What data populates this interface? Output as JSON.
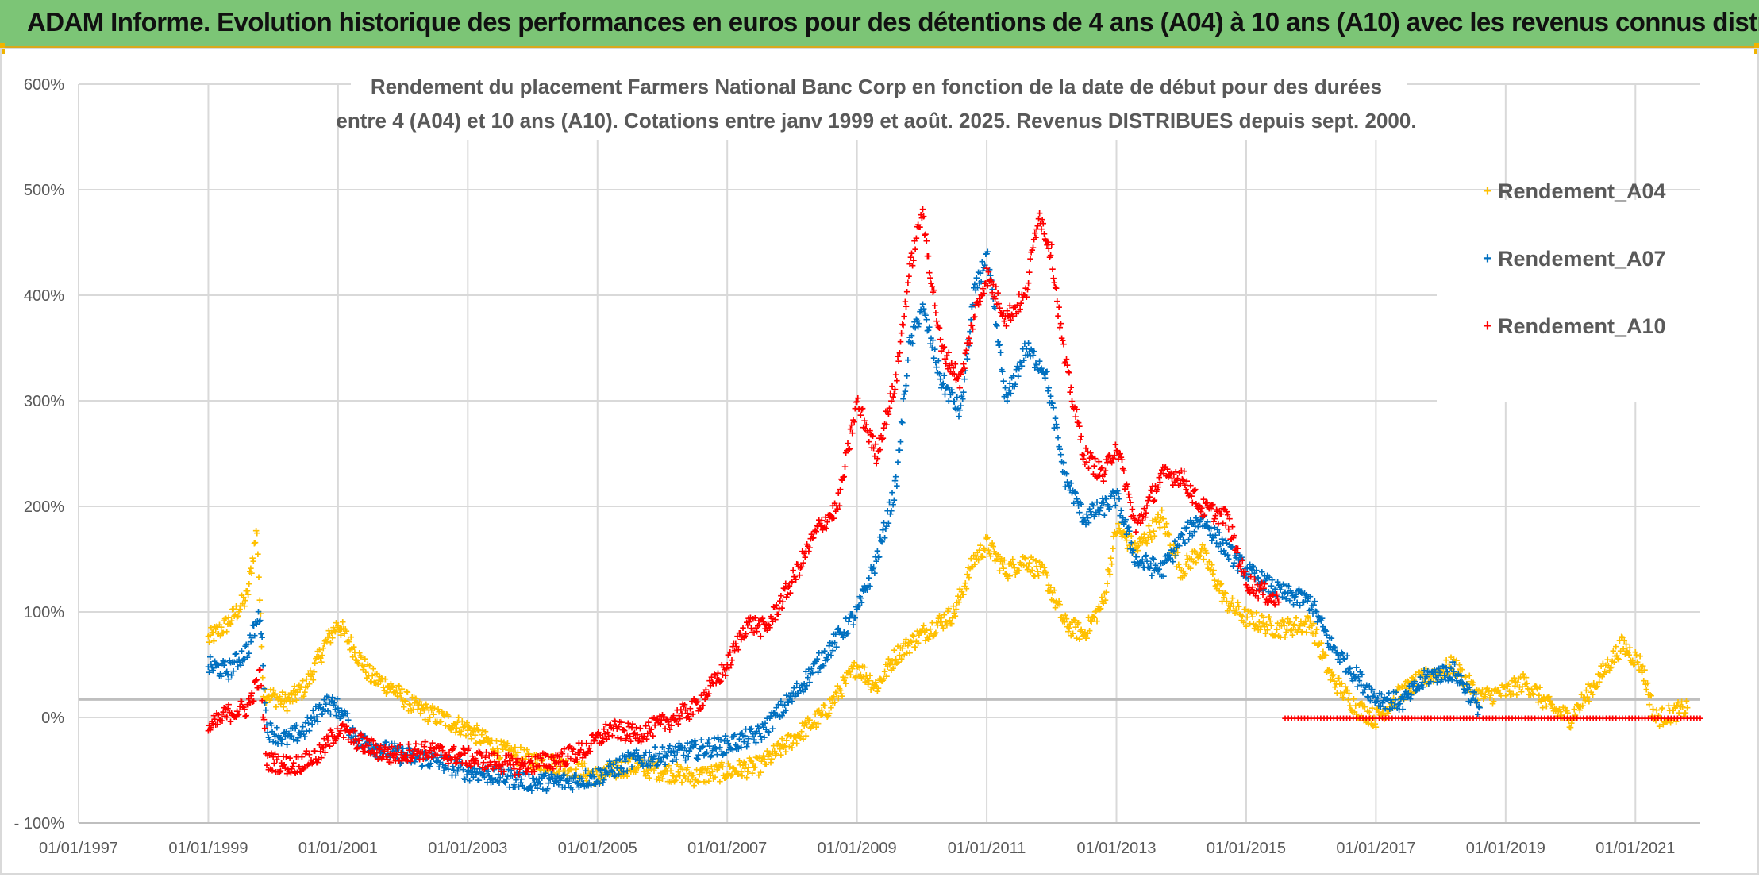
{
  "header": {
    "title": "ADAM Informe. Evolution historique des performances en euros pour des détentions de 4 ans (A04) à 10 ans (A10) avec les revenus connus distribués"
  },
  "colors": {
    "header_bg": "#7cc576",
    "a04": "#ffc000",
    "a07": "#0070c0",
    "a10": "#ff0000"
  },
  "chart_data": {
    "type": "scatter",
    "title_lines": [
      "Rendement du placement Farmers National Banc Corp en fonction de la date de début pour des durées",
      "entre 4 (A04) et 10 ans (A10). Cotations entre janv 1999 et août. 2025. Revenus DISTRIBUES depuis sept. 2000."
    ],
    "x_ticks": [
      "01/01/1997",
      "01/01/1999",
      "01/01/2001",
      "01/01/2003",
      "01/01/2005",
      "01/01/2007",
      "01/01/2009",
      "01/01/2011",
      "01/01/2013",
      "01/01/2015",
      "01/01/2017",
      "01/01/2019",
      "01/01/2021"
    ],
    "y_ticks": [
      "- 100%",
      "0%",
      "100%",
      "200%",
      "300%",
      "400%",
      "500%",
      "600%"
    ],
    "xlim": [
      "1997-01-01",
      "2022-01-01"
    ],
    "ylim": [
      -100,
      600
    ],
    "reference_line": 17,
    "legend_position": "right",
    "series": [
      {
        "name": "Rendement_A04",
        "color": "#ffc000",
        "points": [
          [
            1999.0,
            75
          ],
          [
            1999.3,
            90
          ],
          [
            1999.6,
            115
          ],
          [
            1999.75,
            180
          ],
          [
            1999.85,
            25
          ],
          [
            2000.2,
            15
          ],
          [
            2000.5,
            30
          ],
          [
            2000.8,
            70
          ],
          [
            2001.0,
            90
          ],
          [
            2001.2,
            70
          ],
          [
            2001.5,
            40
          ],
          [
            2001.8,
            30
          ],
          [
            2002.2,
            10
          ],
          [
            2002.6,
            0
          ],
          [
            2003.0,
            -10
          ],
          [
            2003.5,
            -30
          ],
          [
            2004.0,
            -40
          ],
          [
            2004.5,
            -45
          ],
          [
            2005.0,
            -55
          ],
          [
            2005.5,
            -45
          ],
          [
            2006.0,
            -50
          ],
          [
            2006.5,
            -55
          ],
          [
            2007.0,
            -50
          ],
          [
            2007.5,
            -45
          ],
          [
            2008.0,
            -20
          ],
          [
            2008.5,
            5
          ],
          [
            2009.0,
            50
          ],
          [
            2009.3,
            30
          ],
          [
            2009.6,
            60
          ],
          [
            2010.0,
            80
          ],
          [
            2010.5,
            100
          ],
          [
            2010.8,
            150
          ],
          [
            2011.0,
            165
          ],
          [
            2011.3,
            140
          ],
          [
            2011.6,
            150
          ],
          [
            2011.9,
            135
          ],
          [
            2012.2,
            90
          ],
          [
            2012.5,
            80
          ],
          [
            2012.8,
            110
          ],
          [
            2013.0,
            180
          ],
          [
            2013.3,
            160
          ],
          [
            2013.7,
            190
          ],
          [
            2014.0,
            140
          ],
          [
            2014.3,
            160
          ],
          [
            2014.7,
            110
          ],
          [
            2015.0,
            95
          ],
          [
            2015.5,
            85
          ],
          [
            2016.0,
            90
          ],
          [
            2016.3,
            40
          ],
          [
            2016.7,
            10
          ],
          [
            2017.0,
            0
          ],
          [
            2017.4,
            25
          ],
          [
            2017.8,
            40
          ],
          [
            2018.2,
            50
          ],
          [
            2018.6,
            20
          ],
          [
            2019.0,
            25
          ],
          [
            2019.3,
            35
          ],
          [
            2019.7,
            10
          ],
          [
            2020.0,
            0
          ],
          [
            2020.4,
            35
          ],
          [
            2020.8,
            70
          ],
          [
            2021.1,
            50
          ],
          [
            2021.3,
            0
          ],
          [
            2021.6,
            5
          ],
          [
            2021.8,
            10
          ]
        ]
      },
      {
        "name": "Rendement_A07",
        "color": "#0070c0",
        "points": [
          [
            1999.0,
            50
          ],
          [
            1999.3,
            45
          ],
          [
            1999.6,
            65
          ],
          [
            1999.8,
            100
          ],
          [
            1999.9,
            -10
          ],
          [
            2000.2,
            -20
          ],
          [
            2000.5,
            -10
          ],
          [
            2000.8,
            15
          ],
          [
            2001.0,
            10
          ],
          [
            2001.3,
            -20
          ],
          [
            2001.7,
            -30
          ],
          [
            2002.0,
            -35
          ],
          [
            2002.5,
            -40
          ],
          [
            2003.0,
            -50
          ],
          [
            2003.5,
            -55
          ],
          [
            2004.0,
            -60
          ],
          [
            2004.5,
            -60
          ],
          [
            2005.0,
            -55
          ],
          [
            2005.5,
            -40
          ],
          [
            2006.0,
            -35
          ],
          [
            2006.5,
            -30
          ],
          [
            2007.0,
            -25
          ],
          [
            2007.5,
            -15
          ],
          [
            2008.0,
            20
          ],
          [
            2008.5,
            60
          ],
          [
            2009.0,
            100
          ],
          [
            2009.3,
            150
          ],
          [
            2009.6,
            220
          ],
          [
            2009.8,
            350
          ],
          [
            2010.0,
            390
          ],
          [
            2010.3,
            320
          ],
          [
            2010.6,
            290
          ],
          [
            2010.8,
            400
          ],
          [
            2011.0,
            440
          ],
          [
            2011.3,
            300
          ],
          [
            2011.6,
            350
          ],
          [
            2011.9,
            330
          ],
          [
            2012.2,
            230
          ],
          [
            2012.5,
            190
          ],
          [
            2012.8,
            200
          ],
          [
            2013.0,
            210
          ],
          [
            2013.3,
            150
          ],
          [
            2013.7,
            140
          ],
          [
            2014.0,
            170
          ],
          [
            2014.3,
            190
          ],
          [
            2014.7,
            160
          ],
          [
            2015.0,
            140
          ],
          [
            2015.5,
            120
          ],
          [
            2016.0,
            110
          ],
          [
            2016.3,
            70
          ],
          [
            2016.7,
            40
          ],
          [
            2017.0,
            20
          ],
          [
            2017.4,
            15
          ],
          [
            2017.8,
            40
          ],
          [
            2018.2,
            45
          ],
          [
            2018.6,
            10
          ]
        ]
      },
      {
        "name": "Rendement_A10",
        "color": "#ff0000",
        "points": [
          [
            1999.0,
            -10
          ],
          [
            1999.3,
            5
          ],
          [
            1999.6,
            10
          ],
          [
            1999.8,
            40
          ],
          [
            1999.9,
            -40
          ],
          [
            2000.3,
            -45
          ],
          [
            2000.7,
            -35
          ],
          [
            2001.0,
            -10
          ],
          [
            2001.4,
            -25
          ],
          [
            2001.8,
            -35
          ],
          [
            2002.3,
            -30
          ],
          [
            2002.8,
            -35
          ],
          [
            2003.3,
            -40
          ],
          [
            2003.8,
            -45
          ],
          [
            2004.3,
            -40
          ],
          [
            2004.8,
            -30
          ],
          [
            2005.2,
            -10
          ],
          [
            2005.6,
            -15
          ],
          [
            2006.0,
            -5
          ],
          [
            2006.5,
            10
          ],
          [
            2007.0,
            50
          ],
          [
            2007.3,
            90
          ],
          [
            2007.6,
            85
          ],
          [
            2008.0,
            130
          ],
          [
            2008.4,
            180
          ],
          [
            2008.7,
            200
          ],
          [
            2009.0,
            300
          ],
          [
            2009.3,
            250
          ],
          [
            2009.6,
            320
          ],
          [
            2009.8,
            420
          ],
          [
            2010.0,
            480
          ],
          [
            2010.3,
            350
          ],
          [
            2010.6,
            320
          ],
          [
            2010.8,
            380
          ],
          [
            2011.0,
            420
          ],
          [
            2011.3,
            380
          ],
          [
            2011.6,
            400
          ],
          [
            2011.8,
            480
          ],
          [
            2012.0,
            440
          ],
          [
            2012.2,
            340
          ],
          [
            2012.5,
            250
          ],
          [
            2012.8,
            230
          ],
          [
            2013.0,
            260
          ],
          [
            2013.3,
            180
          ],
          [
            2013.7,
            230
          ],
          [
            2014.0,
            230
          ],
          [
            2014.3,
            200
          ],
          [
            2014.7,
            190
          ],
          [
            2015.0,
            130
          ],
          [
            2015.5,
            110
          ]
        ],
        "flat_line": {
          "value": 0,
          "from": 2015.6,
          "to": 2022.0
        }
      }
    ]
  }
}
